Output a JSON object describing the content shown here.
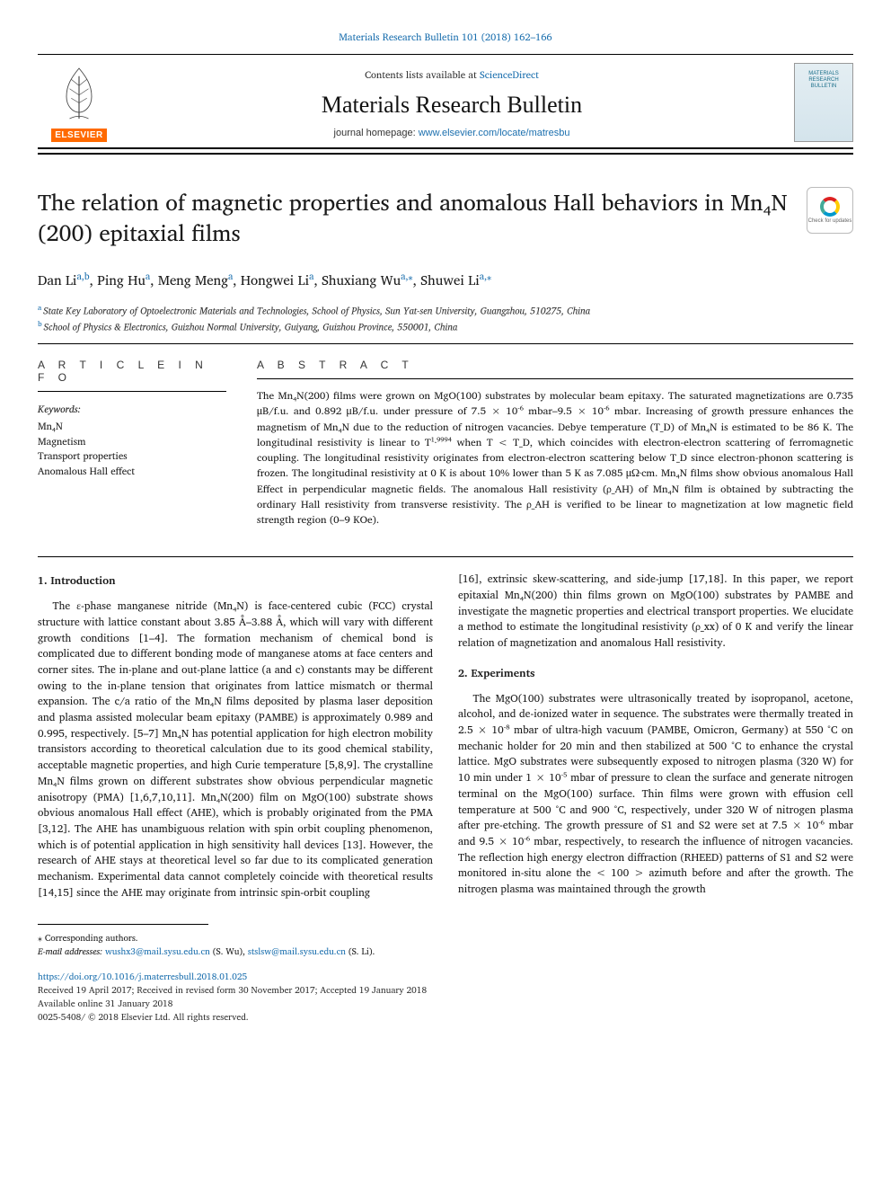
{
  "header": {
    "citation": "Materials Research Bulletin 101 (2018) 162–166",
    "contents_prefix": "Contents lists available at ",
    "contents_link": "ScienceDirect",
    "journal_name": "Materials Research Bulletin",
    "homepage_prefix": "journal homepage: ",
    "homepage_url": "www.elsevier.com/locate/matresbu",
    "publisher_tag": "ELSEVIER",
    "cover_line1": "MATERIALS",
    "cover_line2": "RESEARCH",
    "cover_line3": "BULLETIN",
    "check_updates": "Check for updates"
  },
  "title": "The relation of magnetic properties and anomalous Hall behaviors in Mn₄N (200) epitaxial films",
  "authors_html": "Dan Li|a,b|, Ping Hu|a|, Meng Meng|a|, Hongwei Li|a|, Shuxiang Wu|a,*|, Shuwei Li|a,*|",
  "authors": [
    {
      "name": "Dan Li",
      "sup": "a,b"
    },
    {
      "name": "Ping Hu",
      "sup": "a"
    },
    {
      "name": "Meng Meng",
      "sup": "a"
    },
    {
      "name": "Hongwei Li",
      "sup": "a"
    },
    {
      "name": "Shuxiang Wu",
      "sup": "a,⁎"
    },
    {
      "name": "Shuwei Li",
      "sup": "a,⁎"
    }
  ],
  "affiliations": [
    {
      "sup": "a",
      "text": "State Key Laboratory of Optoelectronic Materials and Technologies, School of Physics, Sun Yat-sen University, Guangzhou, 510275, China"
    },
    {
      "sup": "b",
      "text": "School of Physics & Electronics, Guizhou Normal University, Guiyang, Guizhou Province, 550001, China"
    }
  ],
  "info": {
    "heading": "A R T I C L E  I N F O",
    "kw_label": "Keywords:",
    "keywords": [
      "Mn₄N",
      "Magnetism",
      "Transport properties",
      "Anomalous Hall effect"
    ]
  },
  "abstract": {
    "heading": "A B S T R A C T",
    "text": "The Mn₄N(200) films were grown on MgO(100) substrates by molecular beam epitaxy. The saturated magnetizations are 0.735 μB/f.u. and 0.892 μB/f.u. under pressure of 7.5 × 10⁻⁶ mbar–9.5 × 10⁻⁶ mbar. Increasing of growth pressure enhances the magnetism of Mn₄N due to the reduction of nitrogen vacancies. Debye temperature (T_D) of Mn₄N is estimated to be 86 K. The longitudinal resistivity is linear to T¹·⁹⁹⁹⁴ when T < T_D, which coincides with electron-electron scattering of ferromagnetic coupling. The longitudinal resistivity originates from electron-electron scattering below T_D since electron-phonon scattering is frozen. The longitudinal resistivity at 0 K is about 10% lower than 5 K as 7.085 μΩ·cm. Mn₄N films show obvious anomalous Hall Effect in perpendicular magnetic fields. The anomalous Hall resistivity (ρ_AH) of Mn₄N film is obtained by subtracting the ordinary Hall resistivity from transverse resistivity. The ρ_AH is verified to be linear to magnetization at low magnetic field strength region (0–9 KOe)."
  },
  "body": {
    "left": {
      "sec_head": "1. Introduction",
      "p1": "The ε-phase manganese nitride (Mn₄N) is face-centered cubic (FCC) crystal structure with lattice constant about 3.85 Å–3.88 Å, which will vary with different growth conditions [1–4]. The formation mechanism of chemical bond is complicated due to different bonding mode of manganese atoms at face centers and corner sites. The in-plane and out-plane lattice (a and c) constants may be different owing to the in-plane tension that originates from lattice mismatch or thermal expansion. The c/a ratio of the Mn₄N films deposited by plasma laser deposition and plasma assisted molecular beam epitaxy (PAMBE) is approximately 0.989 and 0.995, respectively. [5–7] Mn₄N has potential application for high electron mobility transistors according to theoretical calculation due to its good chemical stability, acceptable magnetic properties, and high Curie temperature [5,8,9]. The crystalline Mn₄N films grown on different substrates show obvious perpendicular magnetic anisotropy (PMA) [1,6,7,10,11]. Mn₄N(200) film on MgO(100) substrate shows obvious anomalous Hall effect (AHE), which is probably originated from the PMA [3,12]. The AHE has unambiguous relation with spin orbit coupling phenomenon, which is of potential application in high sensitivity hall devices [13]. However, the research of AHE stays at theoretical level so far due to its complicated generation mechanism. Experimental data cannot completely coincide with theoretical results [14,15] since the AHE may originate from intrinsic spin-orbit coupling"
    },
    "right": {
      "p1": "[16], extrinsic skew-scattering, and side-jump [17,18]. In this paper, we report epitaxial Mn₄N(200) thin films grown on MgO(100) substrates by PAMBE and investigate the magnetic properties and electrical transport properties. We elucidate a method to estimate the longitudinal resistivity (ρ_xx) of 0 K and verify the linear relation of magnetization and anomalous Hall resistivity.",
      "sec_head": "2. Experiments",
      "p2": "The MgO(100) substrates were ultrasonically treated by isopropanol, acetone, alcohol, and de-ionized water in sequence. The substrates were thermally treated in 2.5 × 10⁻⁸ mbar of ultra-high vacuum (PAMBE, Omicron, Germany) at 550 °C on mechanic holder for 20 min and then stabilized at 500 °C to enhance the crystal lattice. MgO substrates were subsequently exposed to nitrogen plasma (320 W) for 10 min under 1 × 10⁻⁵ mbar of pressure to clean the surface and generate nitrogen terminal on the MgO(100) surface. Thin films were grown with effusion cell temperature at 500 °C and 900 °C, respectively, under 320 W of nitrogen plasma after pre-etching. The growth pressure of S1 and S2 were set at 7.5 × 10⁻⁶ mbar and 9.5 × 10⁻⁶ mbar, respectively, to research the influence of nitrogen vacancies. The reflection high energy electron diffraction (RHEED) patterns of S1 and S2 were monitored in-situ alone the < 100 > azimuth before and after the growth. The nitrogen plasma was maintained through the growth"
    }
  },
  "footer": {
    "corr": "⁎ Corresponding authors.",
    "email_label": "E-mail addresses: ",
    "email1": "wushx3@mail.sysu.edu.cn",
    "email1_name": " (S. Wu), ",
    "email2": "stslsw@mail.sysu.edu.cn",
    "email2_name": " (S. Li).",
    "doi": "https://doi.org/10.1016/j.materresbull.2018.01.025",
    "received": "Received 19 April 2017; Received in revised form 30 November 2017; Accepted 19 January 2018",
    "available": "Available online 31 January 2018",
    "copyright": "0025-5408/ © 2018 Elsevier Ltd. All rights reserved."
  },
  "colors": {
    "link": "#1b6fae",
    "elsevier_orange": "#ff6a00",
    "text": "#1a1a1a"
  }
}
